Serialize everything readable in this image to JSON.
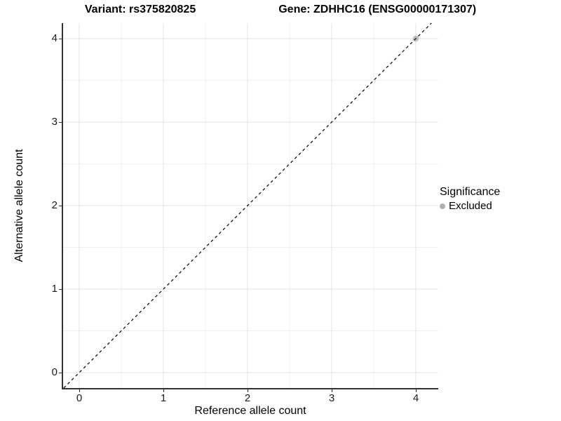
{
  "chart_data": {
    "type": "scatter",
    "title_left": "Variant: rs375820825",
    "title_right": "Gene: ZDHHC16 (ENSG00000171307)",
    "xlabel": "Reference allele count",
    "ylabel": "Alternative allele count",
    "xlim": [
      -0.19,
      4.27
    ],
    "ylim": [
      -0.185,
      4.185
    ],
    "xticks": [
      0,
      1,
      2,
      3,
      4
    ],
    "yticks": [
      0,
      1,
      2,
      3,
      4
    ],
    "minor_gridline_positions": [
      0.5,
      1.5,
      2.5,
      3.5
    ],
    "grid": true,
    "identity_line": {
      "slope": 1,
      "intercept": 0,
      "style": "dashed",
      "color": "#000000"
    },
    "series": [
      {
        "name": "Excluded",
        "color": "#b3b3b3",
        "points": [
          [
            4,
            4
          ]
        ]
      }
    ],
    "legend": {
      "title": "Significance",
      "position": "right",
      "items": [
        {
          "label": "Excluded",
          "color": "#b0b0b0"
        }
      ]
    }
  },
  "colors": {
    "grid_major": "#e3e3e3",
    "grid_minor": "#f0f0f0",
    "axis_line": "#333333",
    "text": "#000000"
  }
}
